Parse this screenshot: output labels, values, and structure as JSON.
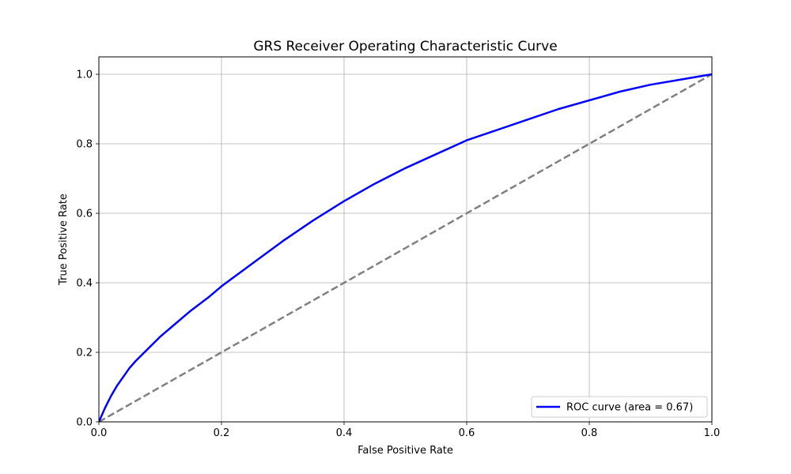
{
  "chart_data": {
    "type": "line",
    "title": "GRS Receiver Operating Characteristic Curve",
    "xlabel": "False Positive Rate",
    "ylabel": "True Positive Rate",
    "xlim": [
      0.0,
      1.0
    ],
    "ylim": [
      0.0,
      1.05
    ],
    "grid": true,
    "legend_position": "lower-right",
    "x_ticks": [
      0.0,
      0.2,
      0.4,
      0.6,
      0.8,
      1.0
    ],
    "y_ticks": [
      0.0,
      0.2,
      0.4,
      0.6,
      0.8,
      1.0
    ],
    "x_tick_labels": [
      "0.0",
      "0.2",
      "0.4",
      "0.6",
      "0.8",
      "1.0"
    ],
    "y_tick_labels": [
      "0.0",
      "0.2",
      "0.4",
      "0.6",
      "0.8",
      "1.0"
    ],
    "series": [
      {
        "name": "ROC curve (area = 0.67)",
        "color": "#0000ff",
        "style": "solid",
        "x": [
          0.0,
          0.005,
          0.01,
          0.02,
          0.03,
          0.04,
          0.05,
          0.06,
          0.08,
          0.1,
          0.12,
          0.15,
          0.18,
          0.2,
          0.25,
          0.3,
          0.35,
          0.4,
          0.45,
          0.5,
          0.55,
          0.6,
          0.65,
          0.7,
          0.75,
          0.8,
          0.85,
          0.9,
          0.95,
          1.0
        ],
        "y": [
          0.0,
          0.02,
          0.04,
          0.075,
          0.105,
          0.13,
          0.155,
          0.175,
          0.21,
          0.245,
          0.275,
          0.32,
          0.36,
          0.39,
          0.455,
          0.52,
          0.58,
          0.635,
          0.685,
          0.73,
          0.77,
          0.81,
          0.84,
          0.87,
          0.9,
          0.925,
          0.95,
          0.97,
          0.985,
          1.0
        ]
      },
      {
        "name": "",
        "color": "#808080",
        "style": "dashed",
        "x": [
          0.0,
          1.0
        ],
        "y": [
          0.0,
          1.0
        ]
      }
    ]
  }
}
